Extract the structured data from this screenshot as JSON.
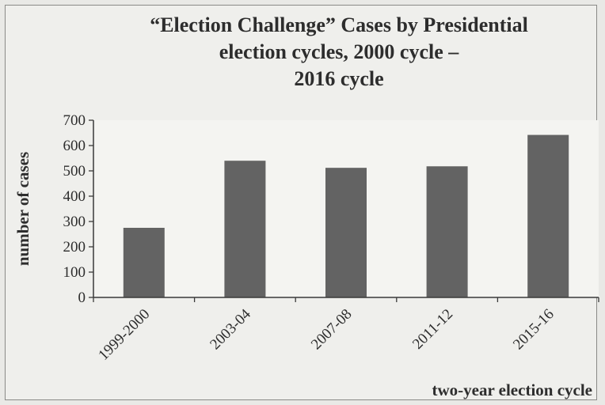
{
  "chart_data": {
    "type": "bar",
    "title_lines": [
      "“Election Challenge” Cases by Presidential",
      "election cycles, 2000 cycle –",
      "2016 cycle"
    ],
    "xlabel": "two-year election cycle",
    "ylabel": "number of cases",
    "categories": [
      "1999-2000",
      "2003-04",
      "2007-08",
      "2011-12",
      "2015-16"
    ],
    "values": [
      275,
      540,
      512,
      518,
      642
    ],
    "ylim": [
      0,
      700
    ],
    "yticks": [
      0,
      100,
      200,
      300,
      400,
      500,
      600,
      700
    ],
    "grid": false,
    "bar_color": "#636363",
    "plot_background": "#efefec"
  }
}
